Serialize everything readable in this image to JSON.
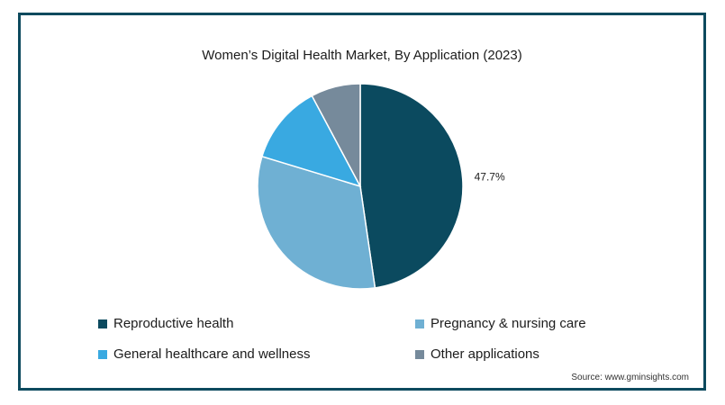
{
  "source": "Source: www.gminsights.com",
  "chart_data": {
    "type": "pie",
    "title": "Women’s Digital Health Market, By Application (2023)",
    "slices": [
      {
        "name": "Reproductive health",
        "value": 47.7,
        "color": "#0b4a5f",
        "label": "47.7%"
      },
      {
        "name": "Pregnancy & nursing care",
        "value": 32.0,
        "color": "#6fb0d3",
        "label": ""
      },
      {
        "name": "General healthcare and wellness",
        "value": 12.5,
        "color": "#39a9e1",
        "label": ""
      },
      {
        "name": "Other applications",
        "value": 7.8,
        "color": "#768a9b",
        "label": ""
      }
    ],
    "legend": "bottom"
  }
}
